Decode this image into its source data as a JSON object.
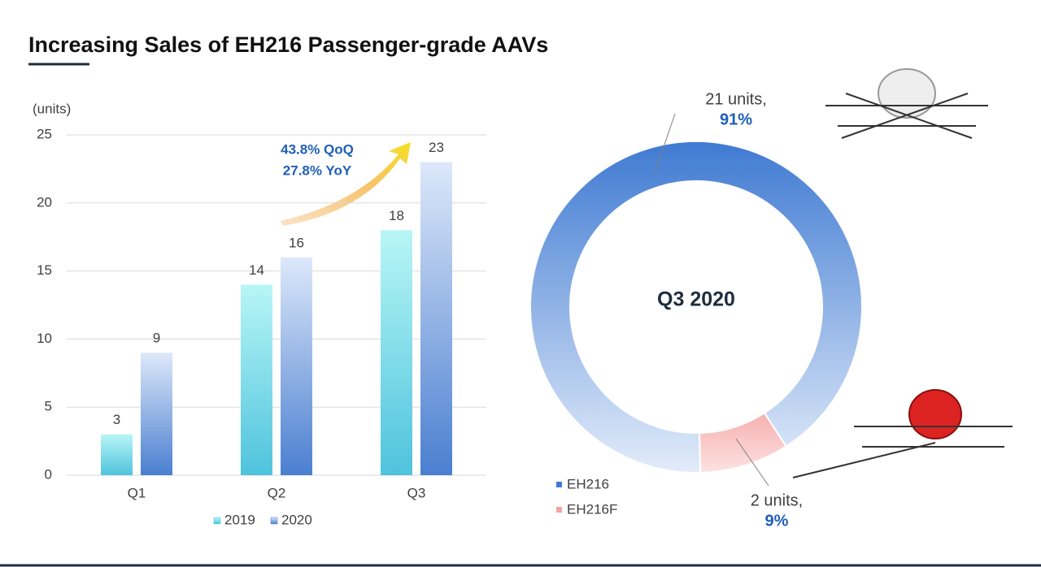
{
  "title": "Increasing Sales of EH216 Passenger-grade AAVs",
  "chart_data": [
    {
      "type": "bar",
      "y_label": "(units)",
      "categories": [
        "Q1",
        "Q2",
        "Q3"
      ],
      "series": [
        {
          "name": "2019",
          "color": "#4fc3dd",
          "values": [
            3,
            14,
            18
          ]
        },
        {
          "name": "2020",
          "color": "#4a7fd0",
          "values": [
            9,
            16,
            23
          ]
        }
      ],
      "ylim": [
        0,
        25
      ],
      "yticks": [
        0,
        5,
        10,
        15,
        20,
        25
      ],
      "grid": true,
      "annotations": [
        "43.8% QoQ",
        "27.8% YoY"
      ]
    },
    {
      "type": "donut",
      "center_label": "Q3 2020",
      "categories": [
        "EH216",
        "EH216F"
      ],
      "values": [
        21,
        2
      ],
      "value_labels": [
        "21 units,",
        "2 units,"
      ],
      "percent_labels": [
        "91%",
        "9%"
      ],
      "colors": [
        "#3f7ad2",
        "#f5a3a3"
      ]
    }
  ]
}
